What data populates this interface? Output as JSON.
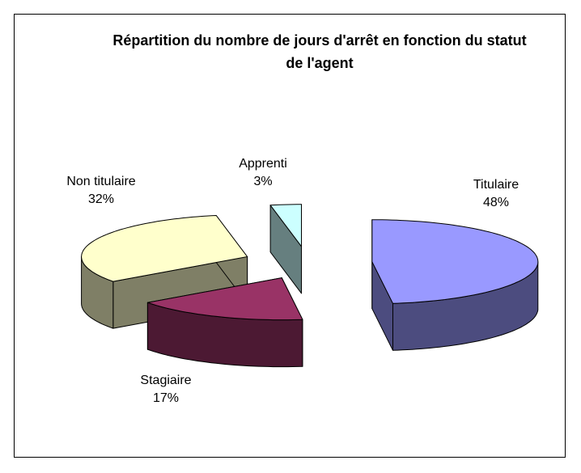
{
  "chart_data": {
    "type": "pie3d",
    "title": "Répartition du nombre de jours d'arrêt en fonction du statut de l'agent",
    "categories": [
      "Titulaire",
      "Stagiaire",
      "Non titulaire",
      "Apprenti"
    ],
    "values": [
      48,
      17,
      32,
      3
    ],
    "value_labels": [
      "48%",
      "17%",
      "32%",
      "3%"
    ],
    "colors": [
      "#9999ff",
      "#993366",
      "#ffffcc",
      "#ccffff"
    ]
  }
}
